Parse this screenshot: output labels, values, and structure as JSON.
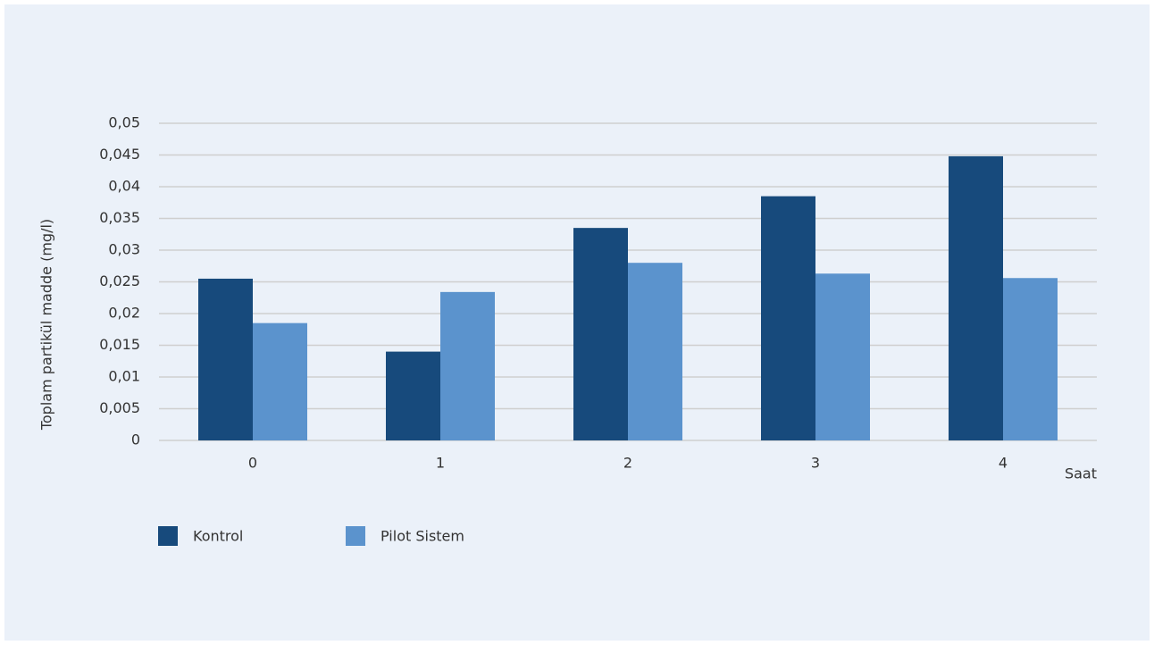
{
  "chart_data": {
    "type": "bar",
    "x_label": "Saat",
    "y_label": "Toplam partikül madde (mg/l)",
    "categories": [
      "0",
      "1",
      "2",
      "3",
      "4"
    ],
    "series": [
      {
        "name": "Kontrol",
        "color": "#174a7c",
        "values": [
          0.0255,
          0.014,
          0.0335,
          0.0385,
          0.0448
        ]
      },
      {
        "name": "Pilot Sistem",
        "color": "#5b93cd",
        "values": [
          0.0185,
          0.0234,
          0.028,
          0.0263,
          0.0256
        ]
      }
    ],
    "ylim": [
      0,
      0.05
    ],
    "yticks": [
      0,
      {
        "value": 0.005,
        "label": "0,005"
      },
      {
        "value": 0.01,
        "label": "0,01"
      },
      {
        "value": 0.015,
        "label": "0,015"
      },
      {
        "value": 0.02,
        "label": "0,02"
      },
      {
        "value": 0.025,
        "label": "0,025"
      },
      {
        "value": 0.03,
        "label": "0,03"
      },
      {
        "value": 0.035,
        "label": "0,035"
      },
      {
        "value": 0.04,
        "label": "0,04"
      },
      {
        "value": 0.045,
        "label": "0,045"
      },
      {
        "value": 0.05,
        "label": "0,05"
      }
    ],
    "grid": true,
    "legend": "bottom-left"
  }
}
